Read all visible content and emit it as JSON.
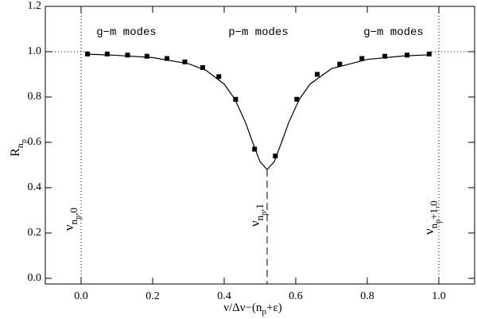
{
  "chart_data": {
    "type": "line",
    "xlabel": [
      "ν/Δν−(n",
      "p",
      "+ε)"
    ],
    "ylabel": [
      "R",
      "n",
      "p"
    ],
    "annotations": [
      "g−m modes",
      "p−m modes",
      "g−m modes"
    ],
    "frequency_labels": [
      [
        "ν",
        "n",
        "p",
        ",0"
      ],
      [
        "ν",
        "n",
        "p",
        ",1"
      ],
      [
        "ν",
        "n",
        "p",
        "+1,0"
      ]
    ],
    "series": [
      {
        "style": "line",
        "color": "#000000",
        "x": [
          0.02,
          0.1,
          0.2,
          0.3,
          0.35,
          0.4,
          0.43,
          0.46,
          0.48,
          0.5,
          0.52,
          0.54,
          0.56,
          0.58,
          0.61,
          0.64,
          0.7,
          0.8,
          0.9,
          0.98
        ],
        "values": [
          0.989,
          0.984,
          0.974,
          0.947,
          0.917,
          0.857,
          0.79,
          0.686,
          0.598,
          0.515,
          0.48,
          0.515,
          0.598,
          0.686,
          0.79,
          0.857,
          0.925,
          0.966,
          0.981,
          0.987
        ]
      },
      {
        "style": "markers",
        "color": "#000000",
        "x": [
          0.018,
          0.073,
          0.13,
          0.184,
          0.24,
          0.29,
          0.34,
          0.385,
          0.432,
          0.485,
          0.543,
          0.603,
          0.66,
          0.723,
          0.785,
          0.849,
          0.911,
          0.973
        ],
        "values": [
          0.99,
          0.99,
          0.985,
          0.98,
          0.97,
          0.955,
          0.93,
          0.89,
          0.79,
          0.57,
          0.54,
          0.79,
          0.9,
          0.945,
          0.97,
          0.98,
          0.985,
          0.99
        ]
      }
    ],
    "reference_y": 1,
    "reference_x": [
      0,
      1
    ],
    "dip": {
      "x": 0.52,
      "y": 0.48
    },
    "xlim": [
      -0.1,
      1.1
    ],
    "ylim": [
      -0.025,
      1.2
    ],
    "xticks": [
      {
        "value": 0,
        "label": "0.0"
      },
      0.2,
      0.4,
      0.6,
      0.8,
      {
        "value": 1,
        "label": "1.0"
      }
    ],
    "yticks": [
      {
        "value": 0,
        "label": "0.0"
      },
      0.2,
      0.4,
      0.6,
      0.8,
      {
        "value": 1,
        "label": "1.0"
      },
      1.2
    ]
  }
}
